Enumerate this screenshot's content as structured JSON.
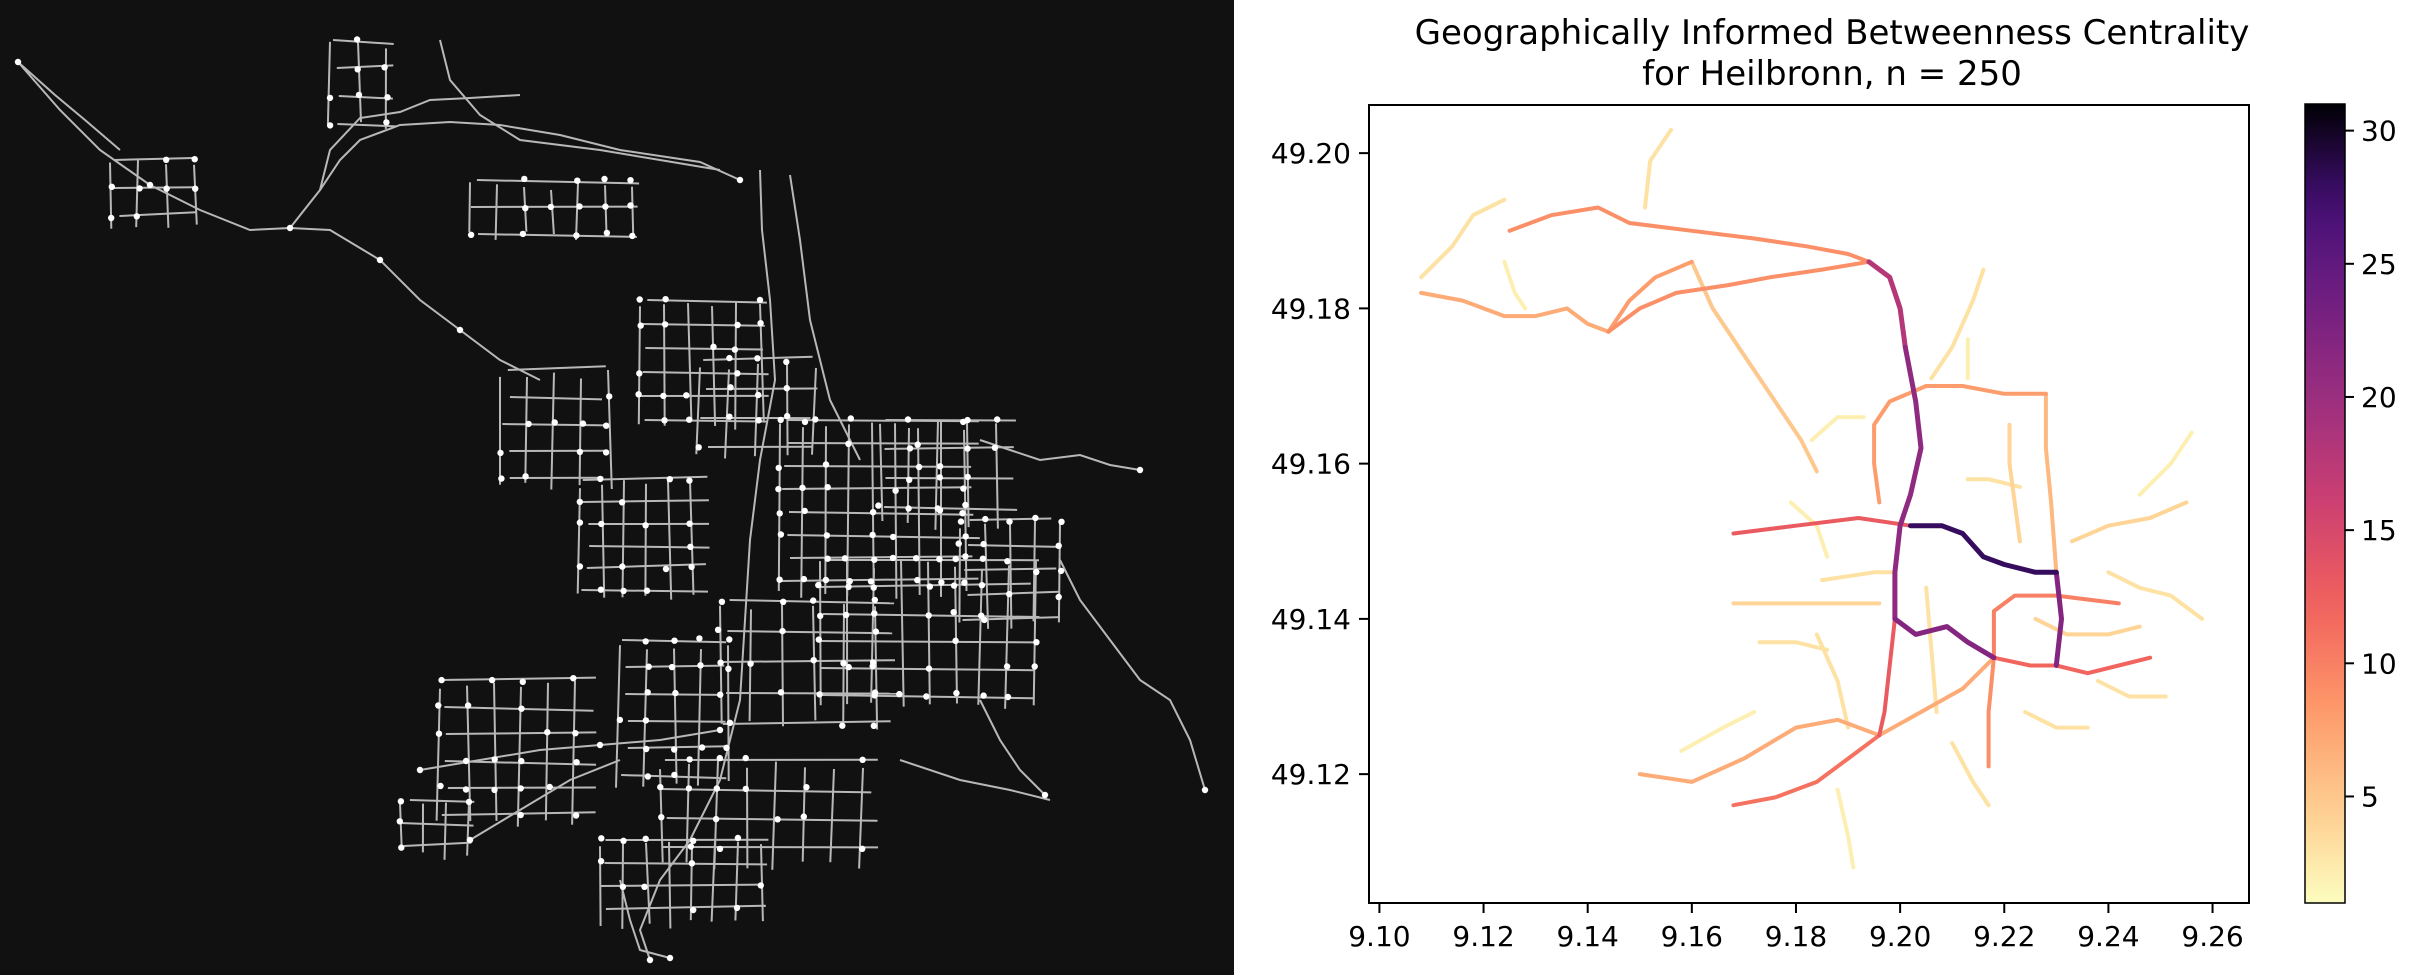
{
  "left_map": {
    "background": "#111111",
    "edge_color": "#b8b8b8",
    "node_color": "#ffffff"
  },
  "chart_data": {
    "type": "line",
    "title_line1": "Geographically Informed Betweenness Centrality",
    "title_line2": "for Heilbronn, n = 250",
    "xlabel": "",
    "ylabel": "",
    "xlim": [
      9.098,
      9.267
    ],
    "ylim": [
      49.1034,
      49.2062
    ],
    "xticks": [
      9.1,
      9.12,
      9.14,
      9.16,
      9.18,
      9.2,
      9.22,
      9.24,
      9.26
    ],
    "xtick_labels": [
      "9.10",
      "9.12",
      "9.14",
      "9.16",
      "9.18",
      "9.20",
      "9.22",
      "9.24",
      "9.26"
    ],
    "yticks": [
      49.12,
      49.14,
      49.16,
      49.18,
      49.2
    ],
    "ytick_labels": [
      "49.12",
      "49.14",
      "49.16",
      "49.18",
      "49.20"
    ],
    "colorbar": {
      "cmap": "magma_r",
      "range": [
        1,
        31
      ],
      "ticks": [
        5,
        10,
        15,
        20,
        25,
        30
      ],
      "tick_labels": [
        "5",
        "10",
        "15",
        "20",
        "25",
        "30"
      ]
    },
    "grid": false,
    "edges": [
      {
        "v": 7,
        "pts": [
          [
            9.108,
            49.182
          ],
          [
            9.116,
            49.181
          ],
          [
            9.124,
            49.179
          ],
          [
            9.13,
            49.179
          ],
          [
            9.136,
            49.18
          ],
          [
            9.14,
            49.178
          ],
          [
            9.144,
            49.177
          ]
        ]
      },
      {
        "v": 9,
        "pts": [
          [
            9.144,
            49.177
          ],
          [
            9.15,
            49.18
          ],
          [
            9.157,
            49.182
          ],
          [
            9.167,
            49.183
          ],
          [
            9.175,
            49.184
          ],
          [
            9.185,
            49.185
          ],
          [
            9.194,
            49.186
          ]
        ]
      },
      {
        "v": 8,
        "pts": [
          [
            9.144,
            49.177
          ],
          [
            9.148,
            49.181
          ],
          [
            9.153,
            49.184
          ],
          [
            9.16,
            49.186
          ]
        ]
      },
      {
        "v": 9,
        "pts": [
          [
            9.125,
            49.19
          ],
          [
            9.133,
            49.192
          ],
          [
            9.142,
            49.193
          ],
          [
            9.148,
            49.191
          ],
          [
            9.16,
            49.19
          ],
          [
            9.172,
            49.189
          ],
          [
            9.182,
            49.188
          ],
          [
            9.19,
            49.187
          ],
          [
            9.194,
            49.186
          ]
        ]
      },
      {
        "v": 18,
        "pts": [
          [
            9.194,
            49.186
          ],
          [
            9.198,
            49.184
          ],
          [
            9.2,
            49.18
          ],
          [
            9.201,
            49.175
          ]
        ]
      },
      {
        "v": 21,
        "pts": [
          [
            9.201,
            49.175
          ],
          [
            9.203,
            49.168
          ],
          [
            9.204,
            49.162
          ],
          [
            9.202,
            49.156
          ],
          [
            9.2,
            49.152
          ],
          [
            9.199,
            49.146
          ],
          [
            9.199,
            49.14
          ]
        ]
      },
      {
        "v": 22,
        "pts": [
          [
            9.199,
            49.14
          ],
          [
            9.203,
            49.138
          ],
          [
            9.209,
            49.139
          ],
          [
            9.213,
            49.137
          ],
          [
            9.218,
            49.135
          ]
        ]
      },
      {
        "v": 13,
        "pts": [
          [
            9.199,
            49.14
          ],
          [
            9.198,
            49.134
          ],
          [
            9.197,
            49.128
          ],
          [
            9.196,
            49.125
          ]
        ]
      },
      {
        "v": 28,
        "pts": [
          [
            9.202,
            49.152
          ],
          [
            9.208,
            49.152
          ],
          [
            9.212,
            49.151
          ],
          [
            9.216,
            49.148
          ],
          [
            9.22,
            49.147
          ],
          [
            9.226,
            49.146
          ],
          [
            9.23,
            49.146
          ]
        ]
      },
      {
        "v": 22,
        "pts": [
          [
            9.23,
            49.146
          ],
          [
            9.231,
            49.14
          ],
          [
            9.23,
            49.134
          ]
        ]
      },
      {
        "v": 13,
        "pts": [
          [
            9.202,
            49.152
          ],
          [
            9.192,
            49.153
          ],
          [
            9.18,
            49.152
          ],
          [
            9.168,
            49.151
          ]
        ]
      },
      {
        "v": 12,
        "pts": [
          [
            9.23,
            49.134
          ],
          [
            9.225,
            49.134
          ],
          [
            9.218,
            49.135
          ]
        ]
      },
      {
        "v": 12,
        "pts": [
          [
            9.23,
            49.134
          ],
          [
            9.236,
            49.133
          ],
          [
            9.242,
            49.134
          ],
          [
            9.248,
            49.135
          ]
        ]
      },
      {
        "v": 10,
        "pts": [
          [
            9.218,
            49.135
          ],
          [
            9.218,
            49.141
          ],
          [
            9.222,
            49.143
          ],
          [
            9.23,
            49.143
          ],
          [
            9.242,
            49.142
          ]
        ]
      },
      {
        "v": 9,
        "pts": [
          [
            9.218,
            49.135
          ],
          [
            9.217,
            49.128
          ],
          [
            9.217,
            49.121
          ]
        ]
      },
      {
        "v": 11,
        "pts": [
          [
            9.196,
            49.125
          ],
          [
            9.19,
            49.122
          ],
          [
            9.184,
            49.119
          ],
          [
            9.176,
            49.117
          ],
          [
            9.168,
            49.116
          ]
        ]
      },
      {
        "v": 7,
        "pts": [
          [
            9.196,
            49.125
          ],
          [
            9.188,
            49.127
          ],
          [
            9.18,
            49.126
          ],
          [
            9.17,
            49.122
          ],
          [
            9.16,
            49.119
          ],
          [
            9.15,
            49.12
          ]
        ]
      },
      {
        "v": 7,
        "pts": [
          [
            9.196,
            49.125
          ],
          [
            9.204,
            49.128
          ],
          [
            9.212,
            49.131
          ],
          [
            9.218,
            49.135
          ]
        ]
      },
      {
        "v": 8,
        "pts": [
          [
            9.205,
            49.17
          ],
          [
            9.212,
            49.17
          ],
          [
            9.22,
            49.169
          ],
          [
            9.228,
            49.169
          ]
        ]
      },
      {
        "v": 8,
        "pts": [
          [
            9.205,
            49.17
          ],
          [
            9.198,
            49.168
          ],
          [
            9.195,
            49.165
          ],
          [
            9.195,
            49.16
          ],
          [
            9.196,
            49.155
          ]
        ]
      },
      {
        "v": 6,
        "pts": [
          [
            9.228,
            49.169
          ],
          [
            9.228,
            49.162
          ],
          [
            9.229,
            49.155
          ],
          [
            9.23,
            49.146
          ]
        ]
      },
      {
        "v": 5,
        "pts": [
          [
            9.16,
            49.186
          ],
          [
            9.164,
            49.18
          ],
          [
            9.17,
            49.174
          ],
          [
            9.176,
            49.168
          ],
          [
            9.181,
            49.163
          ],
          [
            9.184,
            49.159
          ]
        ]
      },
      {
        "v": 3,
        "pts": [
          [
            9.108,
            49.184
          ],
          [
            9.114,
            49.188
          ],
          [
            9.118,
            49.192
          ],
          [
            9.124,
            49.194
          ]
        ]
      },
      {
        "v": 3,
        "pts": [
          [
            9.151,
            49.193
          ],
          [
            9.152,
            49.199
          ],
          [
            9.156,
            49.203
          ]
        ]
      },
      {
        "v": 3,
        "pts": [
          [
            9.206,
            49.171
          ],
          [
            9.21,
            49.175
          ],
          [
            9.214,
            49.181
          ],
          [
            9.216,
            49.185
          ]
        ]
      },
      {
        "v": 4,
        "pts": [
          [
            9.221,
            49.165
          ],
          [
            9.221,
            49.16
          ],
          [
            9.222,
            49.155
          ],
          [
            9.223,
            49.15
          ]
        ]
      },
      {
        "v": 4,
        "pts": [
          [
            9.233,
            49.15
          ],
          [
            9.24,
            49.152
          ],
          [
            9.248,
            49.153
          ],
          [
            9.255,
            49.155
          ]
        ]
      },
      {
        "v": 3,
        "pts": [
          [
            9.185,
            49.145
          ],
          [
            9.195,
            49.146
          ],
          [
            9.199,
            49.146
          ]
        ]
      },
      {
        "v": 4,
        "pts": [
          [
            9.168,
            49.142
          ],
          [
            9.176,
            49.142
          ],
          [
            9.186,
            49.142
          ],
          [
            9.196,
            49.142
          ]
        ]
      },
      {
        "v": 3,
        "pts": [
          [
            9.184,
            49.138
          ],
          [
            9.188,
            49.132
          ],
          [
            9.19,
            49.126
          ]
        ]
      },
      {
        "v": 3,
        "pts": [
          [
            9.205,
            49.144
          ],
          [
            9.206,
            49.136
          ],
          [
            9.207,
            49.128
          ]
        ]
      },
      {
        "v": 4,
        "pts": [
          [
            9.226,
            49.14
          ],
          [
            9.232,
            49.138
          ],
          [
            9.24,
            49.138
          ],
          [
            9.246,
            49.139
          ]
        ]
      },
      {
        "v": 3,
        "pts": [
          [
            9.224,
            49.128
          ],
          [
            9.23,
            49.126
          ],
          [
            9.236,
            49.126
          ]
        ]
      },
      {
        "v": 3,
        "pts": [
          [
            9.24,
            49.146
          ],
          [
            9.246,
            49.144
          ],
          [
            9.252,
            49.143
          ],
          [
            9.258,
            49.14
          ]
        ]
      },
      {
        "v": 3,
        "pts": [
          [
            9.213,
            49.158
          ],
          [
            9.217,
            49.158
          ],
          [
            9.223,
            49.157
          ]
        ]
      },
      {
        "v": 2,
        "pts": [
          [
            9.246,
            49.156
          ],
          [
            9.252,
            49.16
          ],
          [
            9.256,
            49.164
          ]
        ]
      },
      {
        "v": 2,
        "pts": [
          [
            9.188,
            49.118
          ],
          [
            9.19,
            49.112
          ],
          [
            9.191,
            49.108
          ]
        ]
      },
      {
        "v": 2,
        "pts": [
          [
            9.179,
            49.155
          ],
          [
            9.184,
            49.152
          ],
          [
            9.186,
            49.148
          ]
        ]
      },
      {
        "v": 3,
        "pts": [
          [
            9.21,
            49.124
          ],
          [
            9.214,
            49.119
          ],
          [
            9.217,
            49.116
          ]
        ]
      },
      {
        "v": 3,
        "pts": [
          [
            9.238,
            49.132
          ],
          [
            9.244,
            49.13
          ],
          [
            9.251,
            49.13
          ]
        ]
      },
      {
        "v": 2,
        "pts": [
          [
            9.158,
            49.123
          ],
          [
            9.166,
            49.126
          ],
          [
            9.172,
            49.128
          ]
        ]
      },
      {
        "v": 2,
        "pts": [
          [
            9.124,
            49.186
          ],
          [
            9.126,
            49.182
          ],
          [
            9.128,
            49.18
          ]
        ]
      },
      {
        "v": 2,
        "pts": [
          [
            9.213,
            49.176
          ],
          [
            9.213,
            49.171
          ]
        ]
      },
      {
        "v": 2,
        "pts": [
          [
            9.183,
            49.163
          ],
          [
            9.188,
            49.166
          ],
          [
            9.193,
            49.166
          ]
        ]
      },
      {
        "v": 3,
        "pts": [
          [
            9.173,
            49.137
          ],
          [
            9.18,
            49.137
          ],
          [
            9.186,
            49.136
          ]
        ]
      }
    ]
  }
}
